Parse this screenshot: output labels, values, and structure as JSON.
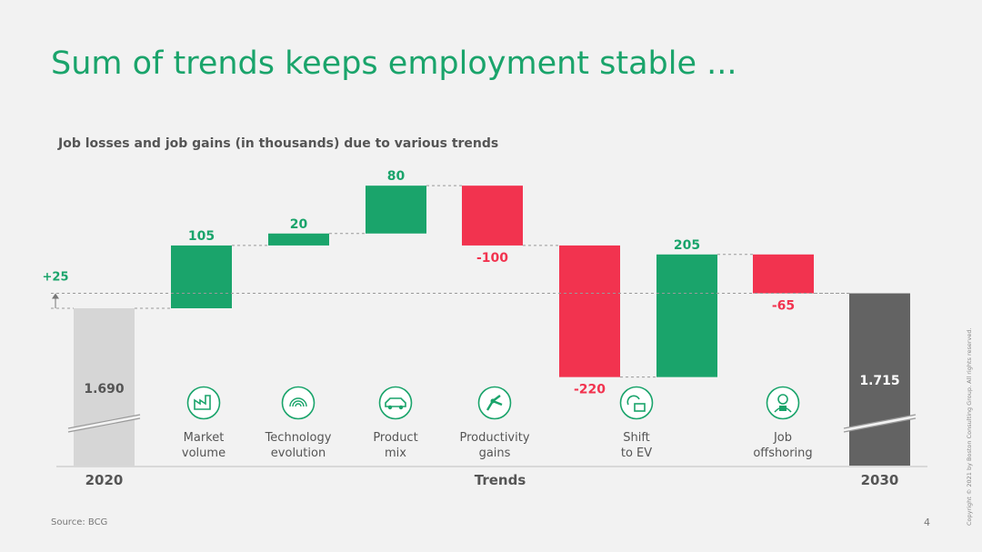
{
  "title": "Sum of trends keeps employment stable ...",
  "subtitle": "Job losses and job gains (in thousands) due to various trends",
  "source": "Source: BCG",
  "page_number": "4",
  "copyright": "Copyright © 2021 by Boston Consulting Group. All rights reserved.",
  "colors": {
    "gain": "#1aa46b",
    "loss": "#f2334f",
    "start": "#d6d6d6",
    "end": "#636363",
    "title": "#1aa46b"
  },
  "chart_data": {
    "type": "waterfall",
    "start": {
      "category": "2020",
      "value_label": "1.690",
      "value": 1690
    },
    "end": {
      "category": "2030",
      "value_label": "1.715",
      "value": 1715
    },
    "net_change_label": "+25",
    "xlabel": "Trends",
    "steps": [
      {
        "category": "Market volume",
        "label_lines": [
          "Market",
          "volume"
        ],
        "value": 105,
        "value_label": "105",
        "icon": "factory-icon"
      },
      {
        "category": "Technology evolution",
        "label_lines": [
          "Technology",
          "evolution"
        ],
        "value": 20,
        "value_label": "20",
        "icon": "fingerprint-icon"
      },
      {
        "category": "Product mix",
        "label_lines": [
          "Product",
          "mix"
        ],
        "value": 80,
        "value_label": "80",
        "icon": "car-icon"
      },
      {
        "category": "Productivity gains",
        "label_lines": [
          "Productivity",
          "gains"
        ],
        "value": -100,
        "value_label": "-100",
        "icon": "robot-arm-icon"
      },
      {
        "category": "",
        "label_lines": [],
        "value": -220,
        "value_label": "-220",
        "icon": ""
      },
      {
        "category": "Shift to EV",
        "label_lines": [
          "Shift",
          "to EV"
        ],
        "value": 205,
        "value_label": "205",
        "icon": "ev-plug-icon"
      },
      {
        "category": "Job offshoring",
        "label_lines": [
          "Job",
          "offshoring"
        ],
        "value": -65,
        "value_label": "-65",
        "icon": "worker-icon"
      }
    ]
  }
}
